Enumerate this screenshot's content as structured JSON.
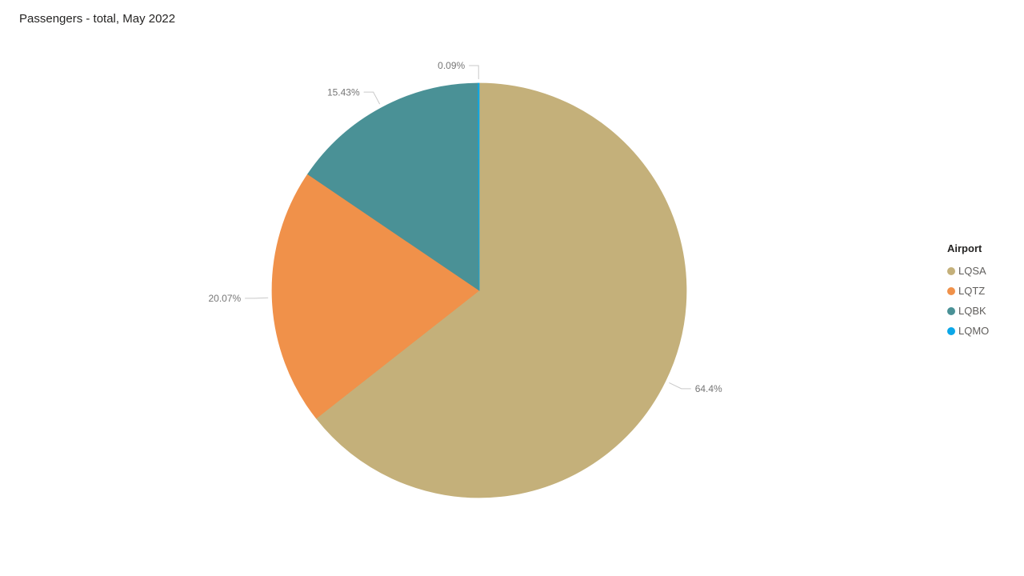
{
  "title": "Passengers - total, May 2022",
  "legend": {
    "title": "Airport"
  },
  "colors": {
    "background": "#FFFFFF",
    "title_text": "#252423",
    "legend_title_text": "#252423",
    "legend_item_text": "#605E5C",
    "detail_label_text": "#767676",
    "leader_line": "#C9C9C9"
  },
  "chart_data": {
    "type": "pie",
    "title": "Passengers - total, May 2022",
    "categories": [
      "LQSA",
      "LQTZ",
      "LQBK",
      "LQMO"
    ],
    "values": [
      64.4,
      20.07,
      15.43,
      0.09
    ],
    "labels": [
      "64.4%",
      "20.07%",
      "15.43%",
      "0.09%"
    ],
    "colors": [
      "#C4B07A",
      "#F0914A",
      "#4A9196",
      "#0BA7E8"
    ],
    "unit": "percent",
    "start_angle": "top",
    "direction": "clockwise",
    "legend_title": "Airport",
    "legend_position": "right-center",
    "labels_style": "outside-with-leader-lines"
  }
}
